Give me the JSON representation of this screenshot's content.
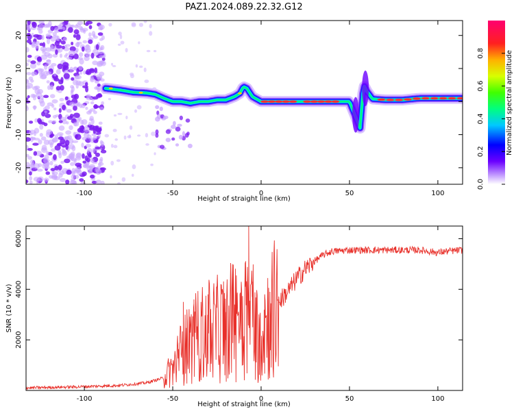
{
  "title": "PAZ1.2024.089.22.32.G12",
  "chart_data": [
    {
      "type": "heatmap",
      "xlabel": "Height of straight line (km)",
      "ylabel": "Frequency (Hz)",
      "xlim": [
        -133,
        114
      ],
      "ylim": [
        -25,
        24.5
      ],
      "xticks": [
        -100,
        -50,
        0,
        50,
        100
      ],
      "yticks": [
        -20,
        -10,
        0,
        10,
        20
      ],
      "colorbar": {
        "label": "Normalized spectral amplitude",
        "ticks": [
          0.0,
          0.2,
          0.4,
          0.6,
          0.8
        ],
        "range": [
          0,
          1
        ]
      },
      "ridge": [
        [
          -88,
          4
        ],
        [
          -80,
          3.5
        ],
        [
          -72,
          2.8
        ],
        [
          -65,
          2.6
        ],
        [
          -60,
          2.2
        ],
        [
          -55,
          1.0
        ],
        [
          -50,
          0
        ],
        [
          -45,
          0
        ],
        [
          -40,
          -0.5
        ],
        [
          -35,
          0
        ],
        [
          -30,
          0
        ],
        [
          -25,
          0.5
        ],
        [
          -20,
          0.5
        ],
        [
          -15,
          1.5
        ],
        [
          -12,
          2.5
        ],
        [
          -10,
          4.5
        ],
        [
          -8,
          4
        ],
        [
          -5,
          1.5
        ],
        [
          0,
          0
        ],
        [
          10,
          0
        ],
        [
          20,
          0
        ],
        [
          30,
          0
        ],
        [
          40,
          0
        ],
        [
          50,
          0
        ],
        [
          53,
          -4
        ],
        [
          56,
          -8
        ],
        [
          58,
          5
        ],
        [
          60,
          3
        ],
        [
          63,
          0.8
        ],
        [
          70,
          0.5
        ],
        [
          80,
          0.5
        ],
        [
          90,
          1
        ],
        [
          100,
          1
        ],
        [
          110,
          1
        ]
      ]
    },
    {
      "type": "line",
      "xlabel": "Height of straight line (km)",
      "ylabel": "SNR (10 * v/v)",
      "xlim": [
        -133,
        114
      ],
      "ylim": [
        0,
        6500
      ],
      "xticks": [
        -100,
        -50,
        0,
        50,
        100
      ],
      "yticks": [
        2000,
        4000,
        6000
      ],
      "series": [
        {
          "color": "#e8302a",
          "envelope": [
            [
              -133,
              100
            ],
            [
              -100,
              150
            ],
            [
              -80,
              200
            ],
            [
              -65,
              300
            ],
            [
              -55,
              500
            ],
            [
              -50,
              900
            ],
            [
              -45,
              1500
            ],
            [
              -40,
              1800
            ],
            [
              -35,
              2200
            ],
            [
              -30,
              2300
            ],
            [
              -25,
              2400
            ],
            [
              -20,
              2600
            ],
            [
              -15,
              2800
            ],
            [
              -10,
              3200
            ],
            [
              -5,
              3000
            ],
            [
              -2,
              2200
            ],
            [
              0,
              2400
            ],
            [
              5,
              2900
            ],
            [
              10,
              3500
            ],
            [
              15,
              3900
            ],
            [
              20,
              4400
            ],
            [
              25,
              4800
            ],
            [
              30,
              5100
            ],
            [
              35,
              5350
            ],
            [
              40,
              5500
            ],
            [
              50,
              5550
            ],
            [
              60,
              5550
            ],
            [
              70,
              5550
            ],
            [
              80,
              5550
            ],
            [
              90,
              5550
            ],
            [
              100,
              5450
            ],
            [
              105,
              5500
            ],
            [
              114,
              5550
            ]
          ],
          "spikes": [
            [
              -44,
              3500
            ],
            [
              -42,
              3200
            ],
            [
              -38,
              3600
            ],
            [
              -34,
              3500
            ],
            [
              -30,
              3800
            ],
            [
              -25,
              4000
            ],
            [
              -20,
              3100
            ],
            [
              -15,
              3300
            ],
            [
              -12,
              3800
            ],
            [
              -9,
              4100
            ],
            [
              -7,
              6500
            ],
            [
              -5,
              4300
            ],
            [
              -2,
              900
            ],
            [
              2,
              3800
            ],
            [
              5,
              3900
            ]
          ]
        }
      ]
    }
  ]
}
